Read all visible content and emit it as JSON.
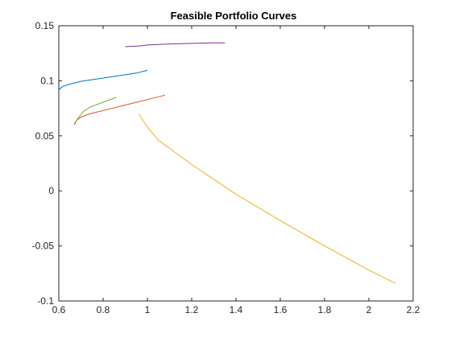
{
  "chart_data": {
    "type": "line",
    "title": "Feasible Portfolio Curves",
    "xlabel": "",
    "ylabel": "",
    "xlim": [
      0.6,
      2.2
    ],
    "ylim": [
      -0.1,
      0.15
    ],
    "xticks": [
      0.6,
      0.8,
      1,
      1.2,
      1.4,
      1.6,
      1.8,
      2,
      2.2
    ],
    "xtick_labels": [
      "0.6",
      "0.8",
      "1",
      "1.2",
      "1.4",
      "1.6",
      "1.8",
      "2",
      "2.2"
    ],
    "yticks": [
      -0.1,
      -0.05,
      0,
      0.05,
      0.1,
      0.15
    ],
    "ytick_labels": [
      "-0.1",
      "-0.05",
      "0",
      "0.05",
      "0.1",
      "0.15"
    ],
    "grid": false,
    "legend": "none",
    "series": [
      {
        "color": "#0072BD",
        "x": [
          0.6,
          0.62,
          0.65,
          0.7,
          0.75,
          0.8,
          0.85,
          0.9,
          0.95,
          1.0
        ],
        "y": [
          0.092,
          0.095,
          0.097,
          0.0995,
          0.101,
          0.1025,
          0.104,
          0.1055,
          0.107,
          0.1095
        ]
      },
      {
        "color": "#D95319",
        "x": [
          1.08,
          1.0,
          0.9,
          0.8,
          0.74,
          0.7,
          0.68,
          0.67
        ],
        "y": [
          0.087,
          0.083,
          0.078,
          0.073,
          0.07,
          0.067,
          0.064,
          0.06
        ]
      },
      {
        "color": "#EDB120",
        "x": [
          0.96,
          1.0,
          1.05,
          1.2,
          1.4,
          1.6,
          1.8,
          2.0,
          2.12
        ],
        "y": [
          0.07,
          0.058,
          0.046,
          0.024,
          -0.003,
          -0.027,
          -0.05,
          -0.072,
          -0.084
        ]
      },
      {
        "color": "#7E2F8E",
        "x": [
          0.9,
          0.95,
          0.98,
          1.0,
          1.1,
          1.2,
          1.3,
          1.35
        ],
        "y": [
          0.131,
          0.1315,
          0.132,
          0.1325,
          0.1335,
          0.134,
          0.1345,
          0.1345
        ]
      },
      {
        "color": "#77AC30",
        "x": [
          0.67,
          0.69,
          0.71,
          0.74,
          0.78,
          0.82,
          0.86
        ],
        "y": [
          0.061,
          0.067,
          0.072,
          0.076,
          0.079,
          0.082,
          0.085
        ]
      }
    ]
  }
}
